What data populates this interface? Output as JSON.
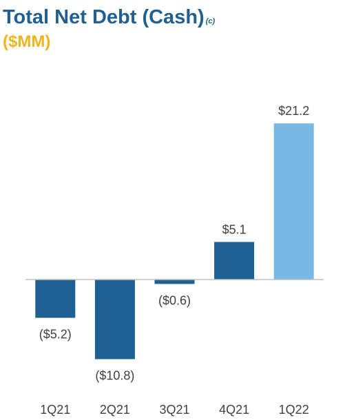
{
  "header": {
    "title": "Total Net Debt (Cash)",
    "title_note": "(c)",
    "subtitle": "($MM)"
  },
  "colors": {
    "title": "#1f5f91",
    "subtitle": "#f0b41c",
    "bar_primary": "#1f5f91",
    "bar_highlight": "#7ab9e6",
    "axis": "#c0c0c0",
    "label": "#404040"
  },
  "chart_data": {
    "type": "bar",
    "title": "Total Net Debt (Cash)",
    "subtitle": "($MM)",
    "categories": [
      "1Q21",
      "2Q21",
      "3Q21",
      "4Q21",
      "1Q22"
    ],
    "values": [
      -5.2,
      -10.8,
      -0.6,
      5.1,
      21.2
    ],
    "data_labels": [
      "($5.2)",
      "($10.8)",
      "($0.6)",
      "$5.1",
      "$21.2"
    ],
    "highlight_index": 4,
    "xlabel": "",
    "ylabel": "",
    "ylim": [
      -11,
      22
    ],
    "grid": false,
    "legend": "none"
  }
}
